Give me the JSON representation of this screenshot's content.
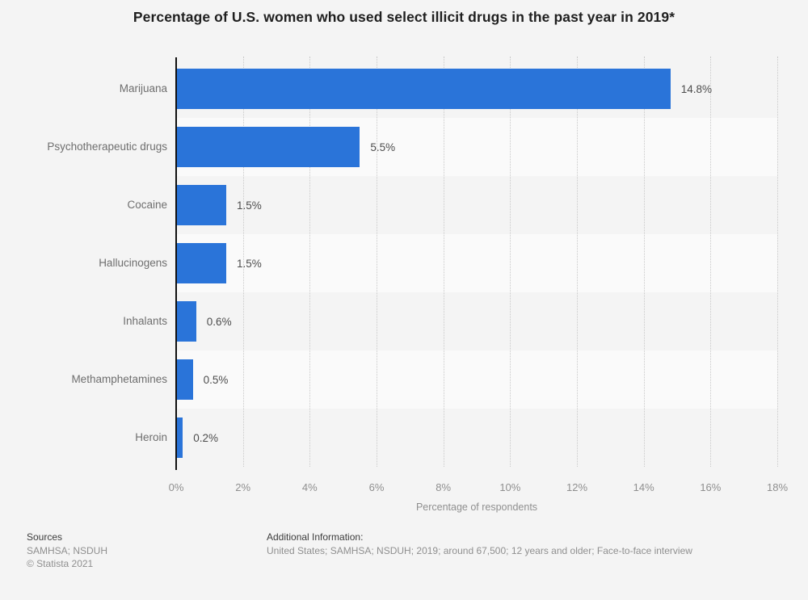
{
  "title": "Percentage of U.S. women who used select illicit drugs in the past year in 2019*",
  "chart_data": {
    "type": "bar",
    "orientation": "horizontal",
    "categories": [
      "Marijuana",
      "Psychotherapeutic drugs",
      "Cocaine",
      "Hallucinogens",
      "Inhalants",
      "Methamphetamines",
      "Heroin"
    ],
    "values": [
      14.8,
      5.5,
      1.5,
      1.5,
      0.6,
      0.5,
      0.2
    ],
    "value_labels": [
      "14.8%",
      "5.5%",
      "1.5%",
      "1.5%",
      "0.6%",
      "0.5%",
      "0.2%"
    ],
    "xlabel": "Percentage of respondents",
    "x_ticks": [
      "0%",
      "2%",
      "4%",
      "6%",
      "8%",
      "10%",
      "12%",
      "14%",
      "16%",
      "18%"
    ],
    "x_tick_values": [
      0,
      2,
      4,
      6,
      8,
      10,
      12,
      14,
      16,
      18
    ],
    "xlim": [
      0,
      18
    ],
    "grid": "vertical-dotted",
    "legend": "none",
    "bar_color": "#2a74d9",
    "band_colors": [
      "#f4f4f4",
      "#fafafa"
    ],
    "axis_color": "#101010",
    "gridline_color": "#c9c9c9"
  },
  "footer": {
    "sources_heading": "Sources",
    "sources_line": "SAMHSA; NSDUH",
    "copyright": "© Statista 2021",
    "additional_heading": "Additional Information:",
    "additional_line": "United States; SAMHSA; NSDUH; 2019; around 67,500; 12 years and older; Face-to-face interview"
  }
}
